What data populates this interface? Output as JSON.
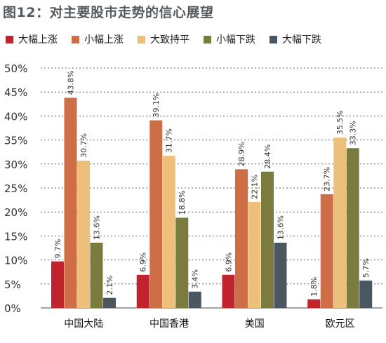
{
  "chart_data": {
    "type": "bar",
    "title": "图12：对主要股市走势的信心展望",
    "xlabel": "",
    "ylabel": "",
    "categories": [
      "中国大陆",
      "中国香港",
      "美国",
      "欧元区"
    ],
    "ylim": [
      0,
      50
    ],
    "yticks": [
      "0%",
      "5%",
      "10%",
      "15%",
      "20%",
      "25%",
      "30%",
      "35%",
      "40%",
      "45%",
      "50%"
    ],
    "grid": "horizontal dashed",
    "legend_position": "top",
    "series": [
      {
        "name": "大幅上涨",
        "color": "#c0232b",
        "values": [
          9.7,
          6.9,
          6.9,
          1.8
        ],
        "labels": [
          "9.7%",
          "6.9%",
          "6.9%",
          "1.8%"
        ]
      },
      {
        "name": "小幅上涨",
        "color": "#cd6e47",
        "values": [
          43.8,
          39.1,
          28.9,
          23.7
        ],
        "labels": [
          "43.8%",
          "39.1%",
          "28.9%",
          "23.7%"
        ]
      },
      {
        "name": "大致持平",
        "color": "#ecc07a",
        "values": [
          30.7,
          31.7,
          22.1,
          35.5
        ],
        "labels": [
          "30.7%",
          "31.7%",
          "22.1%",
          "35.5%"
        ]
      },
      {
        "name": "小幅下跌",
        "color": "#7b7b3e",
        "values": [
          13.6,
          18.8,
          28.4,
          33.3
        ],
        "labels": [
          "13.6%",
          "18.8%",
          "28.4%",
          "33.3%"
        ]
      },
      {
        "name": "大幅下跌",
        "color": "#4a5760",
        "values": [
          2.1,
          3.4,
          13.6,
          5.7
        ],
        "labels": [
          "2.1%",
          "3.4%",
          "13.6%",
          "5.7%"
        ]
      }
    ]
  }
}
